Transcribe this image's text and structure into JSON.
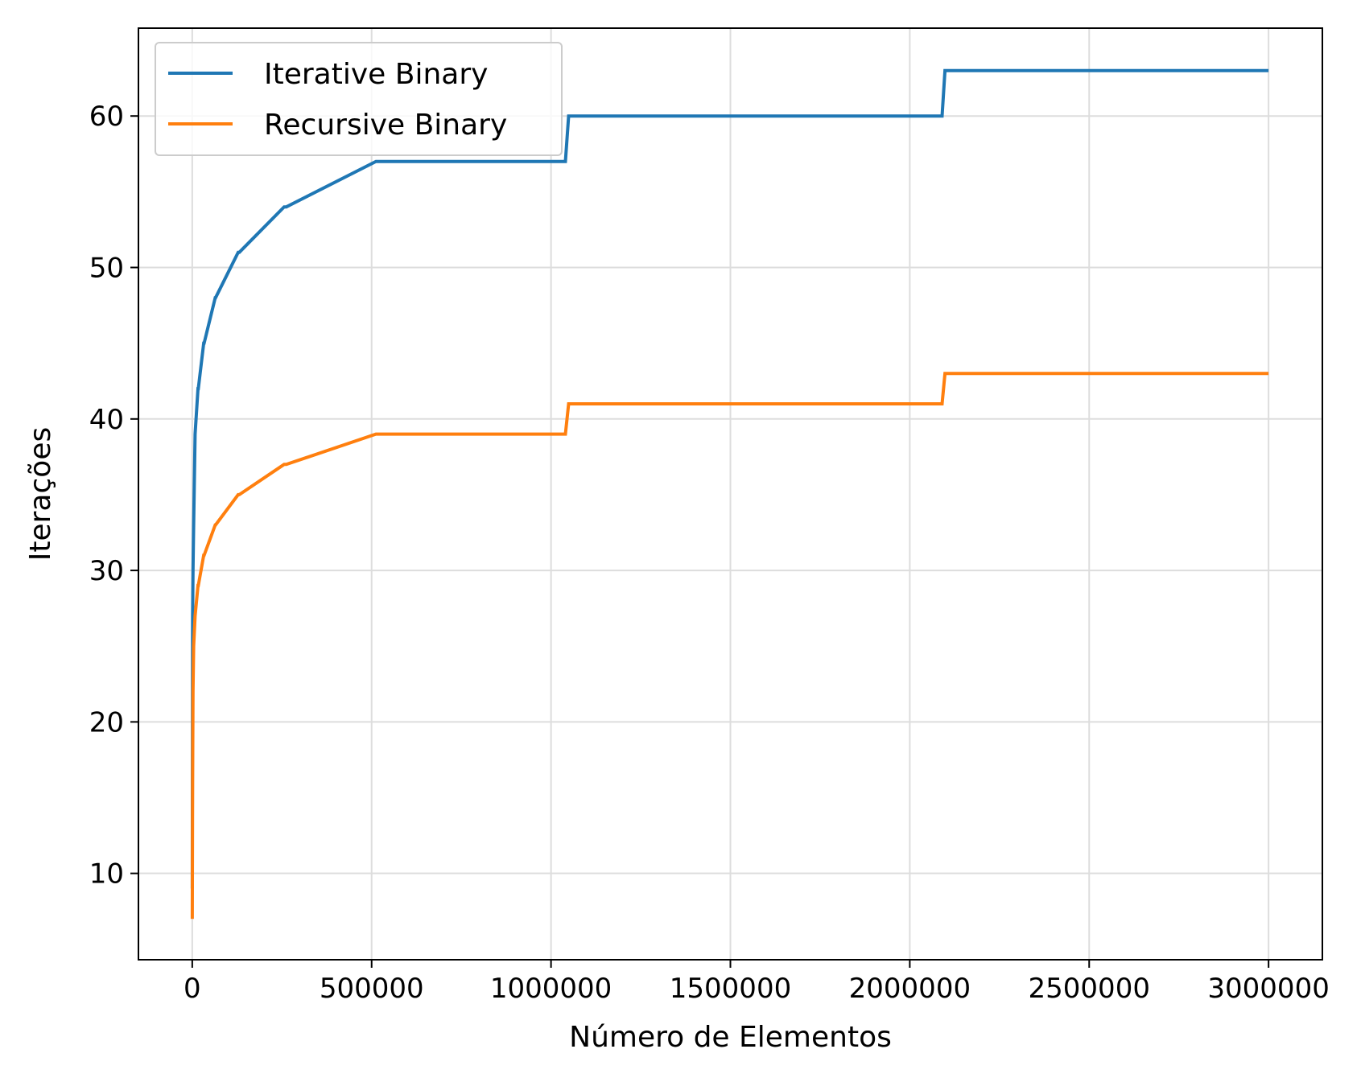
{
  "chart_data": {
    "type": "line",
    "title": "",
    "xlabel": "Número de Elementos",
    "ylabel": "Iterações",
    "xlim": [
      -150000,
      3150000
    ],
    "ylim": [
      4.3,
      65.8
    ],
    "xticks": [
      0,
      500000,
      1000000,
      1500000,
      2000000,
      2500000,
      3000000
    ],
    "xtick_labels": [
      "0",
      "500000",
      "1000000",
      "1500000",
      "2000000",
      "2500000",
      "3000000"
    ],
    "yticks": [
      10,
      20,
      30,
      40,
      50,
      60
    ],
    "ytick_labels": [
      "10",
      "20",
      "30",
      "40",
      "50",
      "60"
    ],
    "grid": true,
    "legend_position": "top-left",
    "series": [
      {
        "name": "Iterative Binary",
        "color": "#1f77b4",
        "x": [
          0,
          1000,
          2000,
          4000,
          8000,
          16000,
          17000,
          32000,
          33000,
          64000,
          65000,
          128000,
          131000,
          256000,
          262000,
          512000,
          524000,
          1040000,
          1049000,
          2090000,
          2098000,
          3000000
        ],
        "y": [
          9,
          27,
          30,
          33,
          39,
          42,
          42,
          45,
          45,
          48,
          48,
          51,
          51,
          54,
          54,
          57,
          57,
          57,
          60,
          60,
          63,
          63
        ]
      },
      {
        "name": "Recursive Binary",
        "color": "#ff7f0e",
        "x": [
          0,
          1000,
          2000,
          4000,
          8000,
          16000,
          17000,
          32000,
          33000,
          64000,
          65000,
          128000,
          131000,
          256000,
          262000,
          512000,
          524000,
          1040000,
          1049000,
          2090000,
          2098000,
          3000000
        ],
        "y": [
          7,
          16,
          22,
          25,
          27,
          29,
          29,
          31,
          31,
          33,
          33,
          35,
          35,
          37,
          37,
          39,
          39,
          39,
          41,
          41,
          43,
          43
        ]
      }
    ]
  }
}
